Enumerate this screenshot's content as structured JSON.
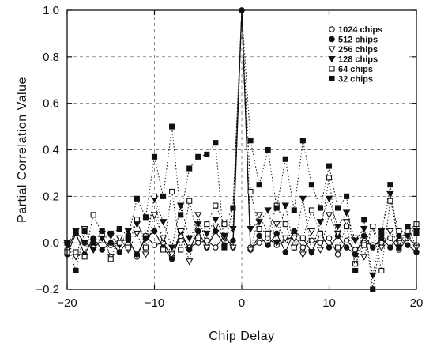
{
  "chart_data": {
    "type": "line",
    "xlabel": "Chip Delay",
    "ylabel": "Partial Correlation Value",
    "xlim": [
      -20,
      20
    ],
    "ylim": [
      -0.2,
      1.0
    ],
    "xticks": [
      -20,
      -10,
      0,
      10,
      20
    ],
    "xtick_labels": [
      "−20",
      "−10",
      "0",
      "10",
      "20"
    ],
    "yticks": [
      -0.2,
      0.0,
      0.2,
      0.4,
      0.6,
      0.8,
      1.0
    ],
    "ytick_labels": [
      "−0.2",
      "0.0",
      "0.2",
      "0.4",
      "0.6",
      "0.8",
      "1.0"
    ],
    "grid": "dashed",
    "legend_position": "top-right",
    "x": [
      -20,
      -19,
      -18,
      -17,
      -16,
      -15,
      -14,
      -13,
      -12,
      -11,
      -10,
      -9,
      -8,
      -7,
      -6,
      -5,
      -4,
      -3,
      -2,
      -1,
      0,
      1,
      2,
      3,
      4,
      5,
      6,
      7,
      8,
      9,
      10,
      11,
      12,
      13,
      14,
      15,
      16,
      17,
      18,
      19,
      20
    ],
    "series": [
      {
        "name": "1024 chips",
        "marker": "open-circle",
        "line": "solid",
        "values": [
          -0.03,
          0.05,
          0.0,
          -0.02,
          0.01,
          -0.01,
          0.0,
          0.02,
          -0.06,
          0.03,
          -0.01,
          0.0,
          -0.06,
          0.03,
          -0.02,
          0.0,
          0.01,
          -0.02,
          0.03,
          -0.02,
          1.0,
          -0.02,
          0.0,
          0.02,
          -0.01,
          0.01,
          0.03,
          -0.02,
          0.01,
          0.0,
          0.02,
          -0.05,
          0.01,
          -0.03,
          0.0,
          -0.01,
          0.0,
          0.02,
          -0.03,
          0.02,
          -0.01
        ]
      },
      {
        "name": "512 chips",
        "marker": "filled-circle",
        "line": "solid",
        "values": [
          -0.05,
          0.04,
          -0.05,
          0.02,
          -0.03,
          0.0,
          -0.04,
          0.01,
          -0.05,
          0.02,
          0.05,
          -0.02,
          -0.07,
          0.05,
          -0.03,
          0.05,
          -0.02,
          0.05,
          -0.01,
          0.01,
          1.0,
          -0.03,
          0.03,
          -0.01,
          0.04,
          -0.04,
          0.05,
          0.02,
          -0.04,
          0.04,
          -0.02,
          0.03,
          -0.02,
          -0.05,
          0.03,
          -0.02,
          0.02,
          -0.02,
          0.03,
          -0.01,
          -0.04
        ]
      },
      {
        "name": "256 chips",
        "marker": "open-triangle-down",
        "line": "dotted",
        "values": [
          0.0,
          -0.06,
          0.06,
          -0.03,
          0.04,
          -0.06,
          0.02,
          -0.03,
          0.04,
          -0.05,
          0.12,
          0.02,
          -0.05,
          0.05,
          -0.08,
          0.12,
          -0.02,
          0.07,
          0.02,
          -0.02,
          1.0,
          -0.03,
          0.12,
          0.04,
          0.08,
          0.02,
          0.02,
          -0.05,
          0.05,
          -0.03,
          0.12,
          0.04,
          0.09,
          0.02,
          -0.06,
          0.07,
          -0.02,
          0.05,
          0.0,
          0.07,
          -0.02
        ]
      },
      {
        "name": "128 chips",
        "marker": "filled-triangle-down",
        "line": "dotted",
        "values": [
          -0.01,
          0.05,
          0.0,
          -0.03,
          0.02,
          0.03,
          -0.01,
          0.05,
          0.08,
          0.02,
          0.19,
          0.09,
          -0.02,
          0.16,
          0.02,
          0.08,
          0.04,
          0.1,
          0.03,
          0.06,
          1.0,
          0.06,
          0.09,
          0.14,
          0.0,
          0.16,
          -0.02,
          0.19,
          -0.04,
          0.09,
          0.19,
          0.07,
          0.13,
          0.01,
          0.06,
          -0.14,
          0.05,
          0.21,
          -0.02,
          0.03,
          0.05
        ]
      },
      {
        "name": "64 chips",
        "marker": "open-square",
        "line": "dotted",
        "values": [
          -0.04,
          -0.04,
          -0.06,
          0.12,
          0.04,
          -0.07,
          0.0,
          -0.02,
          0.1,
          -0.02,
          0.2,
          -0.03,
          0.22,
          -0.03,
          0.18,
          0.02,
          0.08,
          0.16,
          0.08,
          0.15,
          1.0,
          0.22,
          0.06,
          0.04,
          0.16,
          0.08,
          -0.02,
          0.02,
          0.14,
          0.04,
          0.28,
          -0.02,
          0.07,
          -0.09,
          -0.01,
          0.07,
          -0.12,
          0.18,
          0.05,
          0.05,
          0.08
        ]
      },
      {
        "name": "32 chips",
        "marker": "filled-square",
        "line": "dotted",
        "values": [
          0.0,
          -0.12,
          0.05,
          0.0,
          0.05,
          0.04,
          0.06,
          0.03,
          0.19,
          0.11,
          0.37,
          0.2,
          0.5,
          0.12,
          0.32,
          0.37,
          0.38,
          0.43,
          -0.02,
          0.15,
          1.0,
          0.44,
          0.25,
          0.4,
          0.15,
          0.36,
          0.14,
          0.44,
          0.25,
          0.15,
          0.33,
          0.15,
          0.2,
          -0.12,
          0.1,
          -0.2,
          0.04,
          0.25,
          -0.02,
          0.07,
          0.04
        ]
      }
    ]
  },
  "colors": {
    "ink": "#111111",
    "grid": "#555555",
    "background": "#ffffff"
  }
}
